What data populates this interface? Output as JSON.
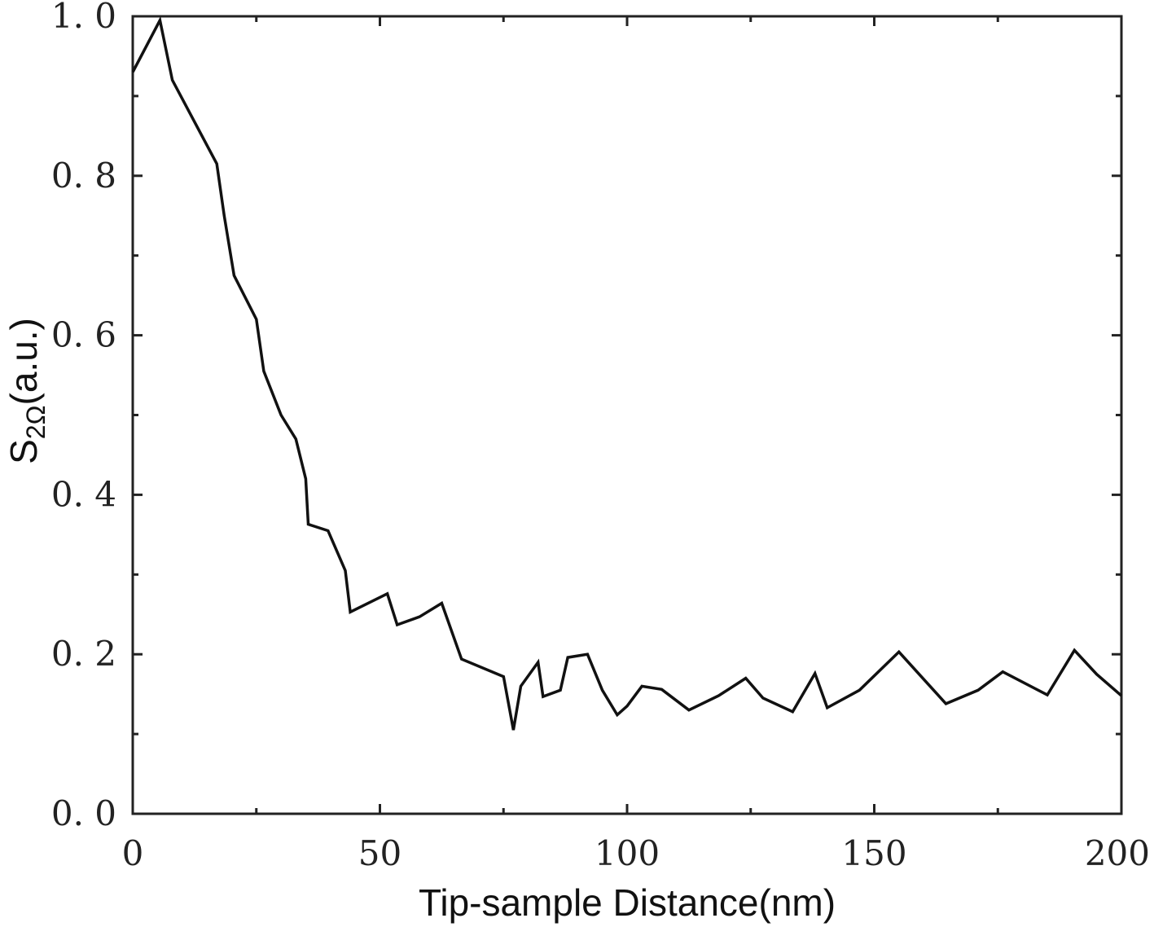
{
  "chart_data": {
    "type": "line",
    "title": "",
    "xlabel": "Tip-sample Distance(nm)",
    "ylabel": {
      "main": "S",
      "subscript": "2Ω",
      "unit": "(a.u.)"
    },
    "xlim": [
      0,
      200
    ],
    "ylim": [
      0.0,
      1.0
    ],
    "xticks": [
      0,
      50,
      100,
      150,
      200
    ],
    "xtick_labels": [
      "0",
      "50",
      "100",
      "150",
      "200"
    ],
    "yticks": [
      0.0,
      0.2,
      0.4,
      0.6,
      0.8,
      1.0
    ],
    "ytick_labels": [
      "0. 0",
      "0. 2",
      "0. 4",
      "0. 6",
      "0. 8",
      "1. 0"
    ],
    "grid": false,
    "line_color": "#111111",
    "series": [
      {
        "x": [
          0,
          5.5,
          8,
          17,
          18.5,
          20.5,
          25,
          26.5,
          30,
          33,
          35,
          35.5,
          39.5,
          43,
          44,
          51.5,
          53.5,
          58,
          62.5,
          66.5,
          75,
          77,
          78.5,
          82,
          83,
          86.5,
          88,
          92,
          95,
          98,
          100,
          103,
          107,
          112.5,
          118.5,
          124,
          127.5,
          133.5,
          138,
          140.5,
          147,
          155,
          164.5,
          171,
          176,
          185,
          190.5,
          195,
          200
        ],
        "y": [
          0.93,
          0.995,
          0.92,
          0.815,
          0.75,
          0.675,
          0.62,
          0.555,
          0.5,
          0.47,
          0.42,
          0.363,
          0.355,
          0.305,
          0.253,
          0.276,
          0.237,
          0.247,
          0.264,
          0.194,
          0.172,
          0.105,
          0.16,
          0.19,
          0.147,
          0.155,
          0.196,
          0.2,
          0.155,
          0.124,
          0.135,
          0.16,
          0.156,
          0.13,
          0.148,
          0.17,
          0.145,
          0.128,
          0.176,
          0.133,
          0.155,
          0.203,
          0.138,
          0.155,
          0.178,
          0.149,
          0.205,
          0.175,
          0.148
        ]
      }
    ]
  }
}
